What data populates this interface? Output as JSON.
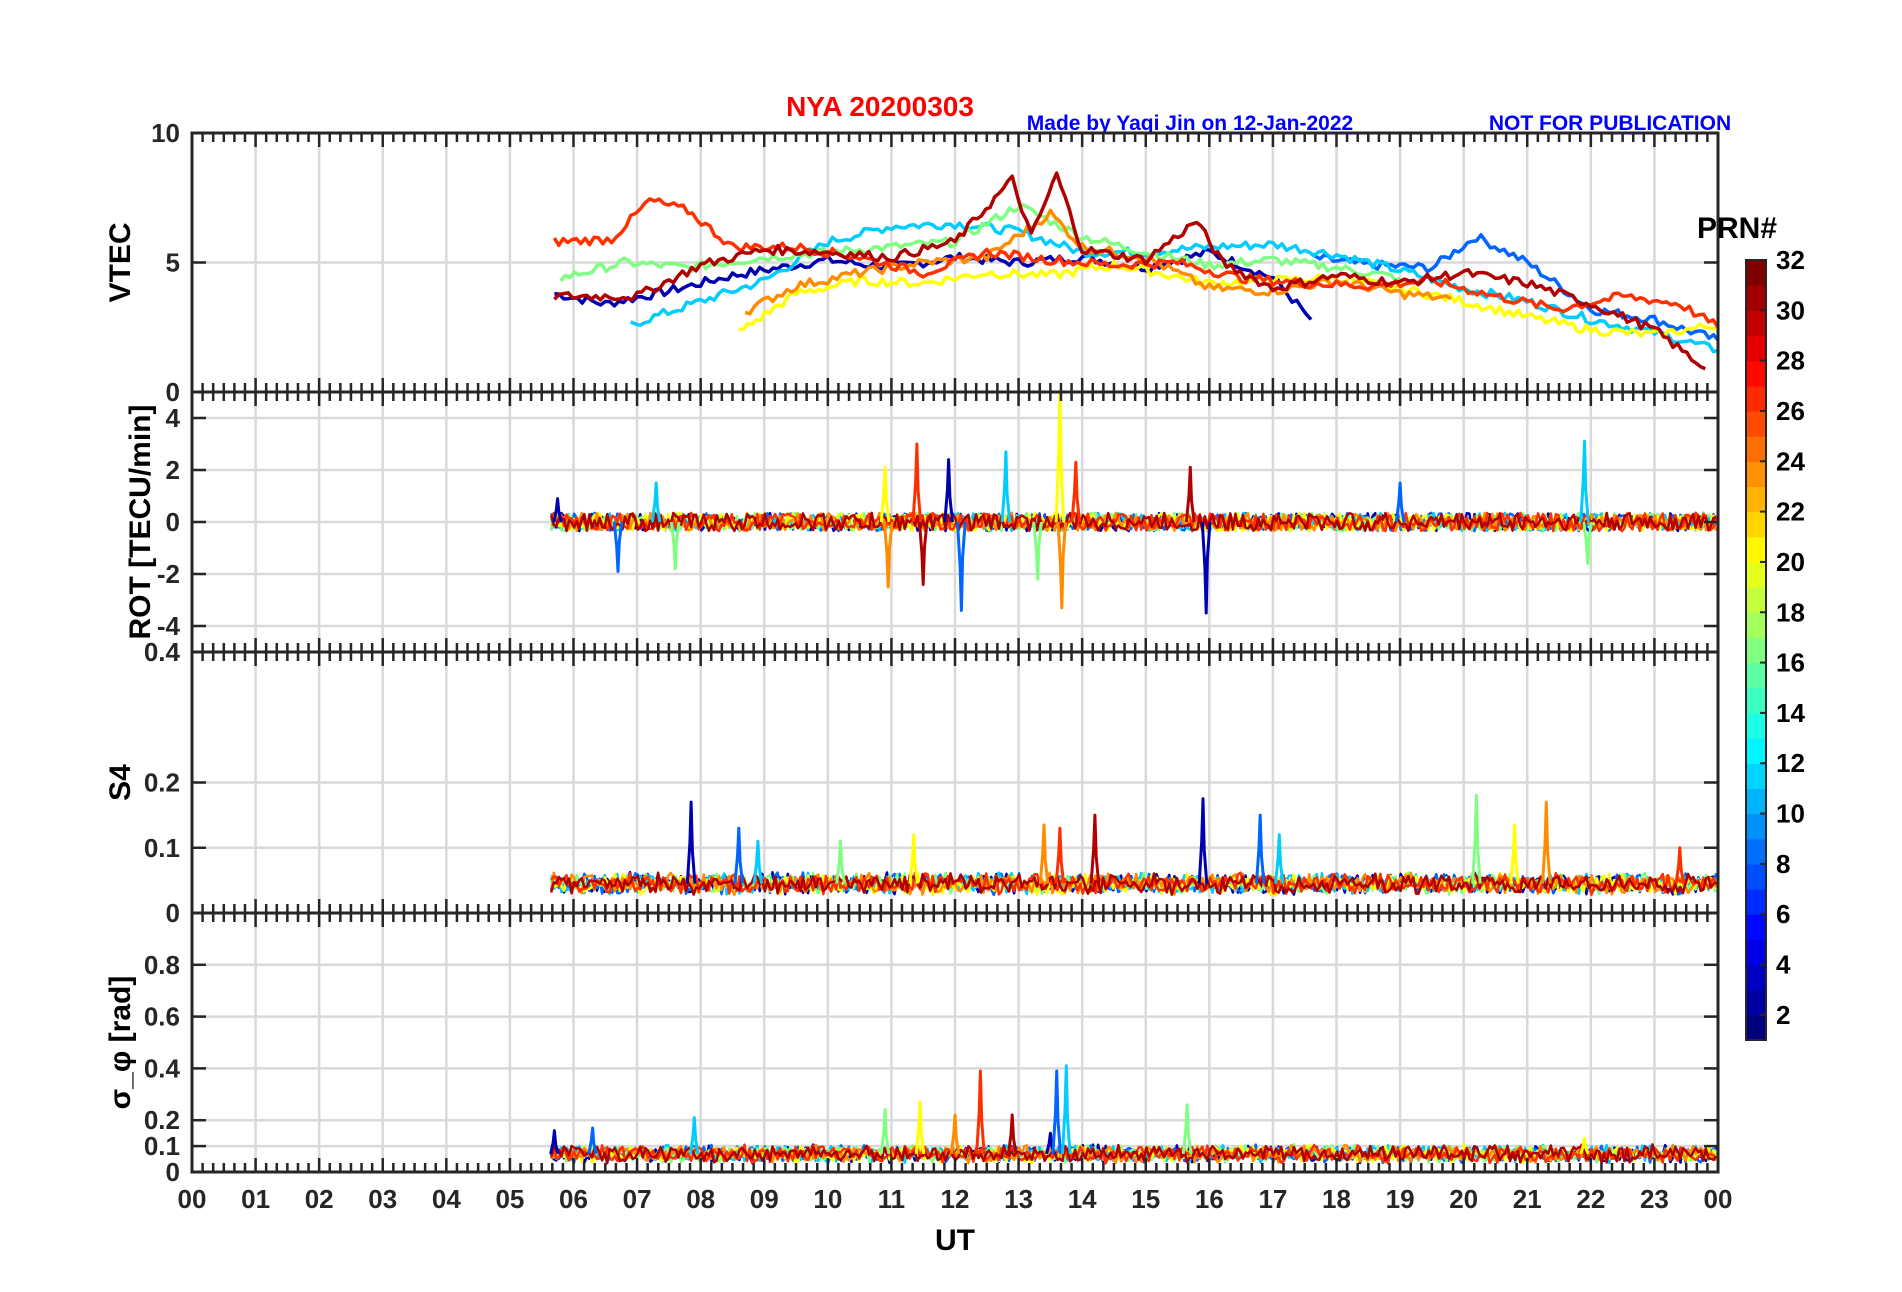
{
  "header": {
    "title": "NYA   20200303",
    "credit": "Made by Yaqi Jin on 12-Jan-2022",
    "notice": "NOT FOR PUBLICATION"
  },
  "x_axis": {
    "label": "UT",
    "tick_labels": [
      "00",
      "01",
      "02",
      "03",
      "04",
      "05",
      "06",
      "07",
      "08",
      "09",
      "10",
      "11",
      "12",
      "13",
      "14",
      "15",
      "16",
      "17",
      "18",
      "19",
      "20",
      "21",
      "22",
      "23",
      "00"
    ]
  },
  "colorbar": {
    "title": "PRN#",
    "tick_labels": [
      "2",
      "4",
      "6",
      "8",
      "10",
      "12",
      "14",
      "16",
      "18",
      "20",
      "22",
      "24",
      "26",
      "28",
      "30",
      "32"
    ],
    "range": [
      1,
      32
    ],
    "colormap": "jet"
  },
  "chart_data": [
    {
      "type": "line",
      "panel": "VTEC",
      "ylabel": "VTEC",
      "xlim": [
        0,
        24
      ],
      "ylim": [
        0,
        10
      ],
      "y_tick_labels": [
        "0",
        "5",
        "10"
      ],
      "grid": true,
      "data_start_ut": 5.65,
      "series": [
        {
          "prn": 2,
          "color": "#0000b0",
          "points": [
            [
              5.7,
              3.8
            ],
            [
              6.5,
              3.4
            ],
            [
              7.5,
              3.9
            ],
            [
              8.5,
              4.5
            ],
            [
              10.0,
              5.1
            ],
            [
              11.0,
              4.8
            ],
            [
              12.0,
              5.2
            ],
            [
              13.0,
              5.0
            ],
            [
              14.0,
              5.2
            ],
            [
              15.0,
              4.8
            ],
            [
              16.0,
              5.4
            ],
            [
              17.0,
              4.4
            ],
            [
              17.6,
              2.8
            ]
          ]
        },
        {
          "prn": 8,
          "color": "#0066ff",
          "points": [
            [
              17.6,
              5.2
            ],
            [
              18.5,
              4.9
            ],
            [
              19.5,
              4.8
            ],
            [
              20.2,
              6.0
            ],
            [
              21.0,
              5.0
            ],
            [
              22.0,
              3.2
            ],
            [
              23.0,
              2.8
            ],
            [
              24.0,
              2.0
            ]
          ]
        },
        {
          "prn": 12,
          "color": "#00ccff",
          "points": [
            [
              6.9,
              2.6
            ],
            [
              8.0,
              3.5
            ],
            [
              9.0,
              4.3
            ],
            [
              10.0,
              5.8
            ],
            [
              11.0,
              6.4
            ],
            [
              12.0,
              6.5
            ],
            [
              13.0,
              6.2
            ],
            [
              14.0,
              5.4
            ],
            [
              15.0,
              5.4
            ],
            [
              16.0,
              5.6
            ],
            [
              17.0,
              5.7
            ],
            [
              18.0,
              5.3
            ],
            [
              19.0,
              4.7
            ],
            [
              20.0,
              4.0
            ],
            [
              21.0,
              3.5
            ],
            [
              22.0,
              2.8
            ],
            [
              23.0,
              2.3
            ],
            [
              24.0,
              1.6
            ]
          ]
        },
        {
          "prn": 16,
          "color": "#7fff7f",
          "points": [
            [
              5.8,
              4.4
            ],
            [
              6.8,
              5.0
            ],
            [
              7.8,
              4.8
            ],
            [
              9.0,
              5.2
            ],
            [
              10.5,
              5.5
            ],
            [
              12.0,
              5.8
            ],
            [
              13.0,
              7.2
            ],
            [
              14.0,
              6.0
            ],
            [
              15.0,
              5.4
            ],
            [
              16.0,
              4.9
            ],
            [
              17.0,
              5.1
            ],
            [
              18.0,
              4.8
            ],
            [
              19.0,
              4.4
            ]
          ]
        },
        {
          "prn": 20,
          "color": "#ffff00",
          "points": [
            [
              8.6,
              2.3
            ],
            [
              9.5,
              3.8
            ],
            [
              10.5,
              4.3
            ],
            [
              11.5,
              4.2
            ],
            [
              12.5,
              4.6
            ],
            [
              13.5,
              4.5
            ],
            [
              14.5,
              4.9
            ],
            [
              15.0,
              4.7
            ],
            [
              16.0,
              4.2
            ],
            [
              17.0,
              4.3
            ],
            [
              18.0,
              4.4
            ],
            [
              19.0,
              4.0
            ],
            [
              20.0,
              3.5
            ],
            [
              21.0,
              2.9
            ],
            [
              22.0,
              2.4
            ],
            [
              23.0,
              2.2
            ],
            [
              24.0,
              2.6
            ]
          ]
        },
        {
          "prn": 24,
          "color": "#ff8c00",
          "points": [
            [
              8.7,
              3.1
            ],
            [
              9.5,
              4.1
            ],
            [
              10.5,
              4.6
            ],
            [
              11.5,
              5.0
            ],
            [
              12.5,
              5.2
            ],
            [
              13.5,
              6.9
            ],
            [
              14.0,
              5.6
            ],
            [
              15.0,
              5.2
            ],
            [
              16.0,
              4.0
            ],
            [
              17.0,
              3.9
            ],
            [
              18.0,
              4.3
            ],
            [
              19.0,
              3.8
            ],
            [
              19.8,
              3.6
            ]
          ]
        },
        {
          "prn": 27,
          "color": "#ff3000",
          "points": [
            [
              5.7,
              5.8
            ],
            [
              6.6,
              5.9
            ],
            [
              7.2,
              7.4
            ],
            [
              7.8,
              7.0
            ],
            [
              8.5,
              5.6
            ],
            [
              9.5,
              5.6
            ],
            [
              10.5,
              5.2
            ],
            [
              11.5,
              4.6
            ],
            [
              12.5,
              5.4
            ],
            [
              13.5,
              5.1
            ],
            [
              14.5,
              4.9
            ],
            [
              15.5,
              5.0
            ],
            [
              16.5,
              4.4
            ],
            [
              17.5,
              4.2
            ],
            [
              18.5,
              4.1
            ],
            [
              19.5,
              4.3
            ],
            [
              20.5,
              3.7
            ],
            [
              21.5,
              3.2
            ],
            [
              22.5,
              3.7
            ],
            [
              23.4,
              3.4
            ],
            [
              24.0,
              2.5
            ]
          ]
        },
        {
          "prn": 31,
          "color": "#b00000",
          "points": [
            [
              5.7,
              3.7
            ],
            [
              7.0,
              3.7
            ],
            [
              8.0,
              4.9
            ],
            [
              9.0,
              5.5
            ],
            [
              10.0,
              5.4
            ],
            [
              11.0,
              5.2
            ],
            [
              12.0,
              5.8
            ],
            [
              12.9,
              8.2
            ],
            [
              13.2,
              6.0
            ],
            [
              13.6,
              8.4
            ],
            [
              14.0,
              5.5
            ],
            [
              15.0,
              5.1
            ],
            [
              15.8,
              6.6
            ],
            [
              16.2,
              5.0
            ],
            [
              17.0,
              4.0
            ],
            [
              18.0,
              4.5
            ],
            [
              19.0,
              4.2
            ],
            [
              20.0,
              4.6
            ],
            [
              21.0,
              4.2
            ],
            [
              22.0,
              3.4
            ],
            [
              23.0,
              2.4
            ],
            [
              23.8,
              0.9
            ]
          ]
        }
      ]
    },
    {
      "type": "line",
      "panel": "ROT",
      "ylabel": "ROT [TECU/min]",
      "xlim": [
        0,
        24
      ],
      "ylim": [
        -5,
        5
      ],
      "y_tick_labels": [
        "-4",
        "-2",
        "0",
        "2",
        "4"
      ],
      "grid": true,
      "data_start_ut": 5.65,
      "baseline": 0,
      "spikes": [
        {
          "ut": 5.75,
          "value": 0.9
        },
        {
          "ut": 6.7,
          "value": -1.9
        },
        {
          "ut": 7.3,
          "value": 1.5
        },
        {
          "ut": 7.6,
          "value": -1.8
        },
        {
          "ut": 10.9,
          "value": 2.1
        },
        {
          "ut": 10.95,
          "value": -2.5
        },
        {
          "ut": 11.4,
          "value": 3.0
        },
        {
          "ut": 11.5,
          "value": -2.4
        },
        {
          "ut": 11.9,
          "value": 2.4
        },
        {
          "ut": 12.1,
          "value": -3.4
        },
        {
          "ut": 12.8,
          "value": 2.7
        },
        {
          "ut": 13.3,
          "value": -2.2
        },
        {
          "ut": 13.65,
          "value": 5.0
        },
        {
          "ut": 13.68,
          "value": -3.3
        },
        {
          "ut": 13.9,
          "value": 2.3
        },
        {
          "ut": 15.7,
          "value": 2.1
        },
        {
          "ut": 15.95,
          "value": -3.5
        },
        {
          "ut": 19.0,
          "value": 1.5
        },
        {
          "ut": 21.9,
          "value": 3.1
        },
        {
          "ut": 21.95,
          "value": -1.6
        }
      ]
    },
    {
      "type": "line",
      "panel": "S4",
      "ylabel": "S4",
      "xlim": [
        0,
        24
      ],
      "ylim": [
        0,
        0.4
      ],
      "y_tick_labels": [
        "0",
        "0.1",
        "0.2",
        "0.4"
      ],
      "grid": true,
      "data_start_ut": 5.65,
      "baseline": 0.045,
      "spikes": [
        {
          "ut": 7.85,
          "value": 0.17
        },
        {
          "ut": 8.6,
          "value": 0.13
        },
        {
          "ut": 8.9,
          "value": 0.11
        },
        {
          "ut": 10.2,
          "value": 0.11
        },
        {
          "ut": 11.35,
          "value": 0.12
        },
        {
          "ut": 13.4,
          "value": 0.135
        },
        {
          "ut": 13.65,
          "value": 0.13
        },
        {
          "ut": 14.2,
          "value": 0.15
        },
        {
          "ut": 15.9,
          "value": 0.175
        },
        {
          "ut": 16.8,
          "value": 0.15
        },
        {
          "ut": 17.1,
          "value": 0.12
        },
        {
          "ut": 20.2,
          "value": 0.18
        },
        {
          "ut": 20.8,
          "value": 0.135
        },
        {
          "ut": 21.3,
          "value": 0.17
        },
        {
          "ut": 23.4,
          "value": 0.1
        }
      ]
    },
    {
      "type": "line",
      "panel": "sigma_phi",
      "ylabel": "σ_φ [rad]",
      "xlim": [
        0,
        24
      ],
      "ylim": [
        0,
        1
      ],
      "y_tick_labels": [
        "0",
        "0.1",
        "0.2",
        "0.4",
        "0.6",
        "0.8"
      ],
      "grid": true,
      "data_start_ut": 5.65,
      "baseline": 0.07,
      "spikes": [
        {
          "ut": 5.7,
          "value": 0.16
        },
        {
          "ut": 6.3,
          "value": 0.17
        },
        {
          "ut": 7.9,
          "value": 0.21
        },
        {
          "ut": 10.9,
          "value": 0.24
        },
        {
          "ut": 11.45,
          "value": 0.27
        },
        {
          "ut": 12.0,
          "value": 0.22
        },
        {
          "ut": 12.4,
          "value": 0.39
        },
        {
          "ut": 12.9,
          "value": 0.22
        },
        {
          "ut": 13.5,
          "value": 0.15
        },
        {
          "ut": 13.6,
          "value": 0.39
        },
        {
          "ut": 13.75,
          "value": 0.41
        },
        {
          "ut": 15.65,
          "value": 0.26
        },
        {
          "ut": 21.9,
          "value": 0.13
        }
      ]
    }
  ]
}
